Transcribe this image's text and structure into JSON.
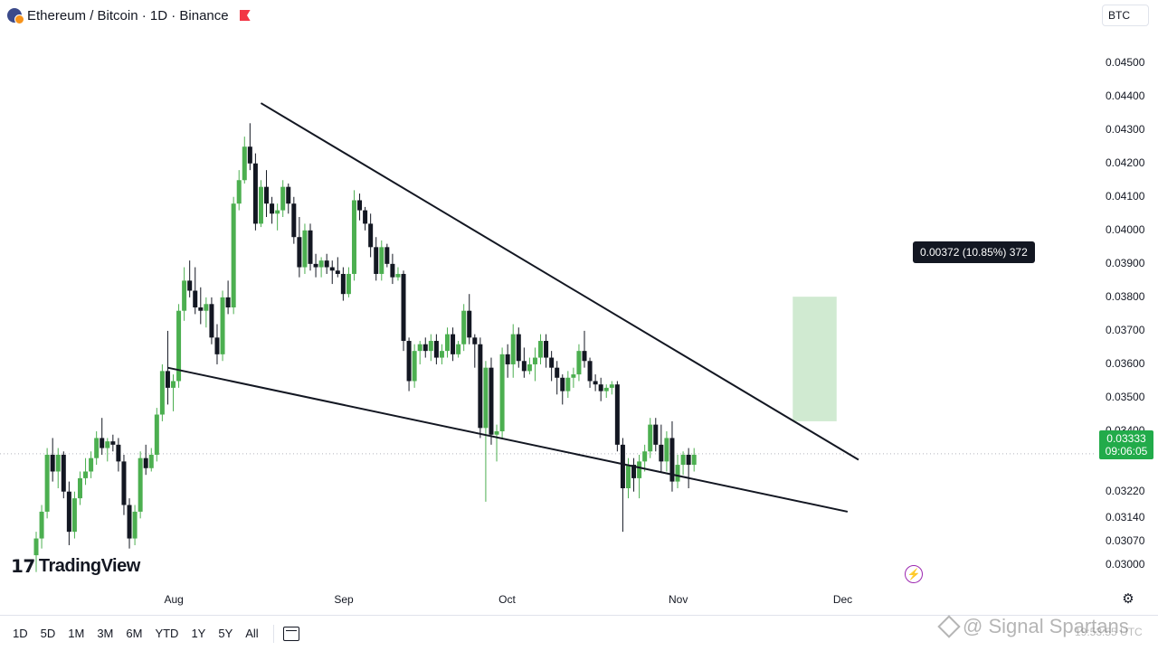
{
  "header": {
    "title": "Ethereum / Bitcoin · 1D · Binance"
  },
  "currency": "BTC",
  "y_axis_labels": [
    {
      "text": "0.04500",
      "v": 0.045
    },
    {
      "text": "0.04400",
      "v": 0.044
    },
    {
      "text": "0.04300",
      "v": 0.043
    },
    {
      "text": "0.04200",
      "v": 0.042
    },
    {
      "text": "0.04100",
      "v": 0.041
    },
    {
      "text": "0.04000",
      "v": 0.04
    },
    {
      "text": "0.03900",
      "v": 0.039
    },
    {
      "text": "0.03800",
      "v": 0.038
    },
    {
      "text": "0.03700",
      "v": 0.037
    },
    {
      "text": "0.03600",
      "v": 0.036
    },
    {
      "text": "0.03500",
      "v": 0.035
    },
    {
      "text": "0.03400",
      "v": 0.034
    },
    {
      "text": "0.03220",
      "v": 0.0322
    },
    {
      "text": "0.03140",
      "v": 0.0314
    },
    {
      "text": "0.03070",
      "v": 0.0307
    },
    {
      "text": "0.03000",
      "v": 0.03
    }
  ],
  "x_axis_labels": [
    {
      "text": "Aug",
      "day": 25
    },
    {
      "text": "Sep",
      "day": 56
    },
    {
      "text": "Oct",
      "day": 86
    },
    {
      "text": "Nov",
      "day": 117
    },
    {
      "text": "Dec",
      "day": 147
    }
  ],
  "current_price": {
    "price": "0.03333",
    "countdown": "09:06:05",
    "value": 0.03333
  },
  "measure": {
    "label": "0.00372 (10.85%) 372",
    "from_price": 0.0343,
    "to_price": 0.03802,
    "from_day": 138,
    "to_day": 146
  },
  "trendlines": [
    {
      "name": "upper-trendline",
      "from": {
        "day": 41,
        "price": 0.0438
      },
      "to": {
        "day": 150,
        "price": 0.03315
      }
    },
    {
      "name": "lower-trendline",
      "from": {
        "day": 24,
        "price": 0.0359
      },
      "to": {
        "day": 148,
        "price": 0.0316
      }
    }
  ],
  "logo": {
    "text": "TradingView"
  },
  "range_buttons": [
    "1D",
    "5D",
    "1M",
    "3M",
    "6M",
    "YTD",
    "1Y",
    "5Y",
    "All"
  ],
  "watermark": "@ Signal Spartans",
  "time_readout": "19:53:55 UTC",
  "colors": {
    "up": "#4caf50",
    "down": "#131722",
    "price_tag": "#22ab4a",
    "measure_fill": "#c8e6c9"
  },
  "chart_data": {
    "type": "candlestick",
    "title": "Ethereum / Bitcoin · 1D · Binance",
    "x_unit": "day index (1 per daily candle)",
    "ylim": [
      0.0296,
      0.0458
    ],
    "candles": [
      [
        0.0303,
        0.031,
        0.0298,
        0.0308
      ],
      [
        0.0308,
        0.0318,
        0.0305,
        0.0316
      ],
      [
        0.0316,
        0.0335,
        0.0314,
        0.0333
      ],
      [
        0.0333,
        0.0338,
        0.0325,
        0.0328
      ],
      [
        0.0328,
        0.0335,
        0.0323,
        0.0333
      ],
      [
        0.0333,
        0.0334,
        0.032,
        0.0322
      ],
      [
        0.0322,
        0.0325,
        0.0306,
        0.031
      ],
      [
        0.031,
        0.0322,
        0.0308,
        0.032
      ],
      [
        0.032,
        0.0328,
        0.0318,
        0.0326
      ],
      [
        0.0326,
        0.0332,
        0.0324,
        0.0328
      ],
      [
        0.0328,
        0.0334,
        0.0326,
        0.0332
      ],
      [
        0.0332,
        0.034,
        0.033,
        0.0338
      ],
      [
        0.0338,
        0.0344,
        0.0333,
        0.0335
      ],
      [
        0.0335,
        0.0338,
        0.0331,
        0.0337
      ],
      [
        0.0337,
        0.0339,
        0.0334,
        0.0336
      ],
      [
        0.0336,
        0.0338,
        0.0328,
        0.0331
      ],
      [
        0.0331,
        0.0333,
        0.0315,
        0.0318
      ],
      [
        0.0318,
        0.032,
        0.0305,
        0.0308
      ],
      [
        0.0308,
        0.0318,
        0.0306,
        0.0316
      ],
      [
        0.0316,
        0.0334,
        0.0314,
        0.0332
      ],
      [
        0.0332,
        0.0336,
        0.0327,
        0.0329
      ],
      [
        0.0329,
        0.0335,
        0.0328,
        0.0333
      ],
      [
        0.0333,
        0.0347,
        0.0331,
        0.0345
      ],
      [
        0.0345,
        0.036,
        0.0343,
        0.0358
      ],
      [
        0.0358,
        0.037,
        0.0348,
        0.0353
      ],
      [
        0.0353,
        0.0357,
        0.0346,
        0.0355
      ],
      [
        0.0355,
        0.0378,
        0.0353,
        0.0376
      ],
      [
        0.0376,
        0.0389,
        0.0373,
        0.0385
      ],
      [
        0.0385,
        0.0391,
        0.038,
        0.0382
      ],
      [
        0.0382,
        0.0389,
        0.0375,
        0.0377
      ],
      [
        0.0377,
        0.0383,
        0.0372,
        0.0376
      ],
      [
        0.0376,
        0.038,
        0.0371,
        0.0378
      ],
      [
        0.0378,
        0.038,
        0.0366,
        0.0368
      ],
      [
        0.0368,
        0.0372,
        0.036,
        0.0363
      ],
      [
        0.0363,
        0.0382,
        0.0361,
        0.038
      ],
      [
        0.038,
        0.0385,
        0.0375,
        0.0377
      ],
      [
        0.0377,
        0.041,
        0.0375,
        0.0408
      ],
      [
        0.0408,
        0.0418,
        0.0406,
        0.0415
      ],
      [
        0.0415,
        0.0428,
        0.0414,
        0.0425
      ],
      [
        0.0425,
        0.0432,
        0.0418,
        0.042
      ],
      [
        0.042,
        0.0423,
        0.04,
        0.0402
      ],
      [
        0.0402,
        0.0415,
        0.0401,
        0.0413
      ],
      [
        0.0413,
        0.0418,
        0.0404,
        0.0408
      ],
      [
        0.0408,
        0.041,
        0.0402,
        0.0405
      ],
      [
        0.0405,
        0.0408,
        0.04,
        0.0406
      ],
      [
        0.0406,
        0.0415,
        0.0404,
        0.0413
      ],
      [
        0.0413,
        0.0414,
        0.0405,
        0.0408
      ],
      [
        0.0408,
        0.041,
        0.0396,
        0.0398
      ],
      [
        0.0398,
        0.0404,
        0.0386,
        0.0389
      ],
      [
        0.0389,
        0.0402,
        0.0387,
        0.04
      ],
      [
        0.04,
        0.0402,
        0.0388,
        0.039
      ],
      [
        0.039,
        0.0393,
        0.0386,
        0.0389
      ],
      [
        0.0389,
        0.0392,
        0.0386,
        0.0391
      ],
      [
        0.0391,
        0.0393,
        0.0387,
        0.0389
      ],
      [
        0.0389,
        0.0391,
        0.0384,
        0.0388
      ],
      [
        0.0388,
        0.0392,
        0.0386,
        0.0387
      ],
      [
        0.0387,
        0.0389,
        0.0379,
        0.0381
      ],
      [
        0.0381,
        0.0389,
        0.038,
        0.0387
      ],
      [
        0.0387,
        0.0412,
        0.0385,
        0.0409
      ],
      [
        0.0409,
        0.0411,
        0.0403,
        0.0406
      ],
      [
        0.0406,
        0.0407,
        0.04,
        0.0402
      ],
      [
        0.0402,
        0.0405,
        0.0392,
        0.0395
      ],
      [
        0.0395,
        0.0398,
        0.0385,
        0.0387
      ],
      [
        0.0387,
        0.0397,
        0.0385,
        0.0395
      ],
      [
        0.0395,
        0.0396,
        0.0389,
        0.039
      ],
      [
        0.039,
        0.0393,
        0.0384,
        0.0386
      ],
      [
        0.0386,
        0.0389,
        0.0385,
        0.0387
      ],
      [
        0.0387,
        0.0388,
        0.0364,
        0.0367
      ],
      [
        0.0367,
        0.0368,
        0.0352,
        0.0355
      ],
      [
        0.0355,
        0.0366,
        0.0353,
        0.0364
      ],
      [
        0.0364,
        0.0367,
        0.036,
        0.0366
      ],
      [
        0.0366,
        0.0368,
        0.0362,
        0.0364
      ],
      [
        0.0364,
        0.0369,
        0.0361,
        0.0367
      ],
      [
        0.0367,
        0.0369,
        0.036,
        0.0362
      ],
      [
        0.0362,
        0.0366,
        0.036,
        0.0364
      ],
      [
        0.0364,
        0.0371,
        0.0362,
        0.0369
      ],
      [
        0.0369,
        0.0371,
        0.0361,
        0.0363
      ],
      [
        0.0363,
        0.0367,
        0.0362,
        0.0366
      ],
      [
        0.0366,
        0.0378,
        0.0364,
        0.0376
      ],
      [
        0.0376,
        0.0381,
        0.0366,
        0.0368
      ],
      [
        0.0368,
        0.0369,
        0.0359,
        0.0366
      ],
      [
        0.0366,
        0.0368,
        0.0338,
        0.0341
      ],
      [
        0.0341,
        0.0361,
        0.0319,
        0.0359
      ],
      [
        0.0359,
        0.0362,
        0.0336,
        0.0339
      ],
      [
        0.0339,
        0.0342,
        0.0331,
        0.034
      ],
      [
        0.034,
        0.0365,
        0.0338,
        0.0363
      ],
      [
        0.0363,
        0.0366,
        0.0356,
        0.036
      ],
      [
        0.036,
        0.0372,
        0.0356,
        0.0369
      ],
      [
        0.0369,
        0.0371,
        0.0359,
        0.0361
      ],
      [
        0.0361,
        0.0365,
        0.0356,
        0.0358
      ],
      [
        0.0358,
        0.0362,
        0.0357,
        0.036
      ],
      [
        0.036,
        0.0365,
        0.0355,
        0.0362
      ],
      [
        0.0362,
        0.0369,
        0.036,
        0.0367
      ],
      [
        0.0367,
        0.0369,
        0.0359,
        0.0362
      ],
      [
        0.0362,
        0.0364,
        0.0355,
        0.0359
      ],
      [
        0.0359,
        0.0361,
        0.0351,
        0.0356
      ],
      [
        0.0356,
        0.0357,
        0.0348,
        0.0352
      ],
      [
        0.0352,
        0.0358,
        0.035,
        0.0356
      ],
      [
        0.0356,
        0.0359,
        0.0353,
        0.0357
      ],
      [
        0.0357,
        0.0366,
        0.0355,
        0.0364
      ],
      [
        0.0364,
        0.037,
        0.0359,
        0.0361
      ],
      [
        0.0361,
        0.0362,
        0.0353,
        0.0355
      ],
      [
        0.0355,
        0.0357,
        0.0352,
        0.0354
      ],
      [
        0.0354,
        0.0356,
        0.0349,
        0.0352
      ],
      [
        0.0352,
        0.0354,
        0.035,
        0.0353
      ],
      [
        0.0353,
        0.0355,
        0.0351,
        0.0354
      ],
      [
        0.0354,
        0.0355,
        0.0334,
        0.0336
      ],
      [
        0.0336,
        0.0338,
        0.031,
        0.0323
      ],
      [
        0.0323,
        0.0332,
        0.032,
        0.033
      ],
      [
        0.033,
        0.0332,
        0.0322,
        0.0326
      ],
      [
        0.0326,
        0.0333,
        0.032,
        0.0331
      ],
      [
        0.0331,
        0.0336,
        0.0328,
        0.0334
      ],
      [
        0.0334,
        0.0344,
        0.0332,
        0.0342
      ],
      [
        0.0342,
        0.0344,
        0.0334,
        0.0336
      ],
      [
        0.0336,
        0.0342,
        0.0328,
        0.0331
      ],
      [
        0.0331,
        0.034,
        0.0328,
        0.0338
      ],
      [
        0.0338,
        0.0343,
        0.0322,
        0.0325
      ],
      [
        0.0325,
        0.0333,
        0.0323,
        0.033
      ],
      [
        0.033,
        0.0334,
        0.0327,
        0.0333
      ],
      [
        0.0333,
        0.0335,
        0.0323,
        0.033
      ],
      [
        0.033,
        0.0335,
        0.0328,
        0.0333
      ]
    ]
  }
}
